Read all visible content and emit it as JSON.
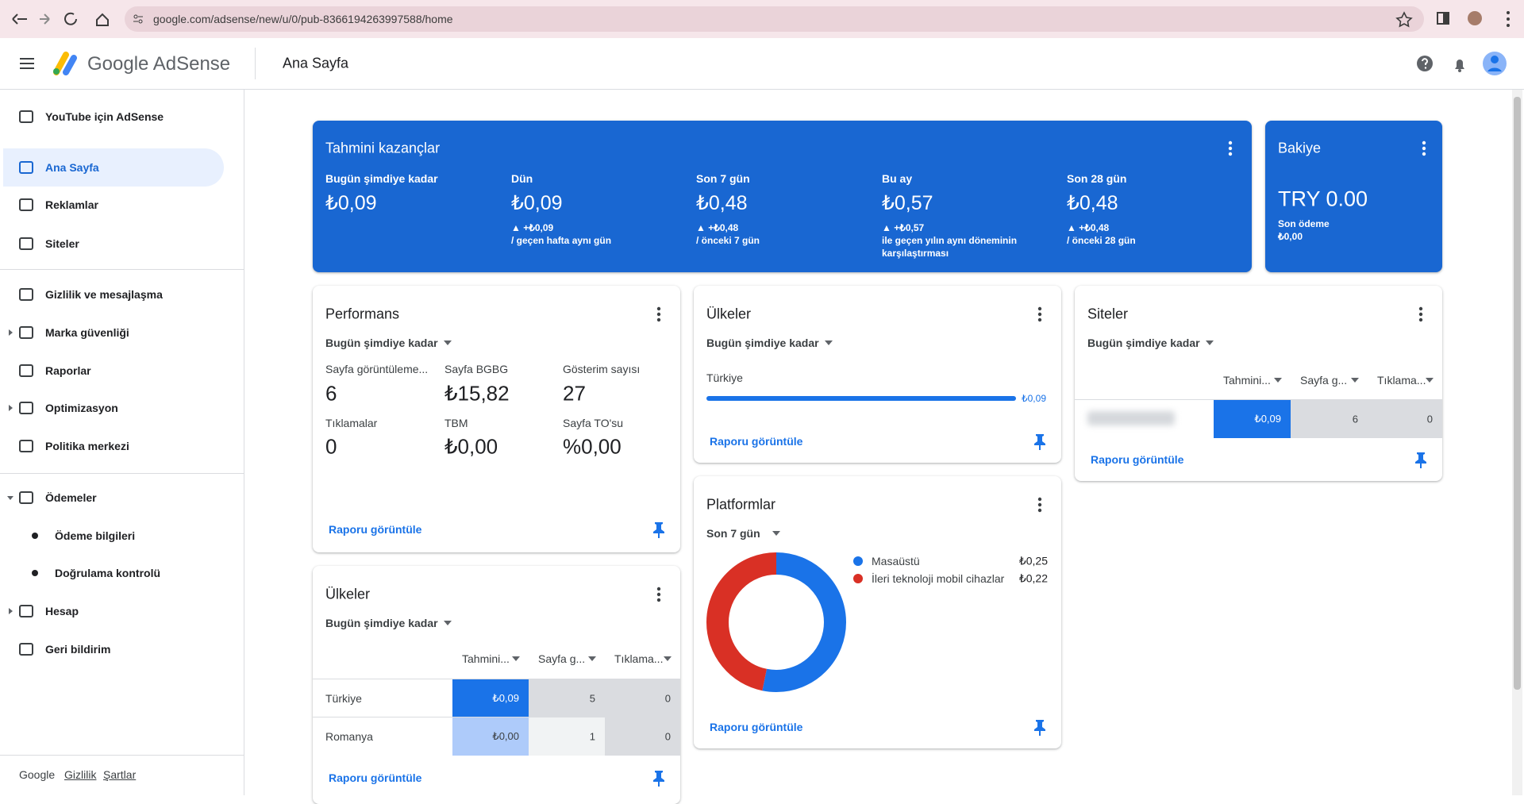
{
  "browser": {
    "url": "google.com/adsense/new/u/0/pub-8366194263997588/home"
  },
  "header": {
    "product": "Google AdSense",
    "page_title": "Ana Sayfa"
  },
  "sidebar": {
    "items": [
      "YouTube için AdSense",
      "Ana Sayfa",
      "Reklamlar",
      "Siteler",
      "Gizlilik ve mesajlaşma",
      "Marka güvenliği",
      "Raporlar",
      "Optimizasyon",
      "Politika merkezi",
      "Ödemeler",
      "Ödeme bilgileri",
      "Doğrulama kontrolü",
      "Hesap",
      "Geri bildirim"
    ],
    "footer": [
      "Google",
      "Gizlilik",
      "Şartlar"
    ]
  },
  "earnings": {
    "title": "Tahmini kazançlar",
    "periods": [
      {
        "label": "Bugün şimdiye kadar",
        "value": "₺0,09"
      },
      {
        "label": "Dün",
        "value": "₺0,09",
        "change": "▲ +₺0,09",
        "compare": "/ geçen hafta aynı gün"
      },
      {
        "label": "Son 7 gün",
        "value": "₺0,48",
        "change": "▲ +₺0,48",
        "compare": "/ önceki 7 gün"
      },
      {
        "label": "Bu ay",
        "value": "₺0,57",
        "change": "▲ +₺0,57",
        "compare": "ile geçen yılın aynı döneminin karşılaştırması"
      },
      {
        "label": "Son 28 gün",
        "value": "₺0,48",
        "change": "▲ +₺0,48",
        "compare": "/ önceki 28 gün"
      }
    ]
  },
  "balance": {
    "title": "Bakiye",
    "amount": "TRY 0.00",
    "last_payment_label": "Son ödeme",
    "last_payment": "₺0,00"
  },
  "performance": {
    "title": "Performans",
    "period": "Bugün şimdiye kadar",
    "metrics": [
      {
        "label": "Sayfa görüntüleme...",
        "value": "6"
      },
      {
        "label": "Sayfa BGBG",
        "value": "₺15,82"
      },
      {
        "label": "Gösterim sayısı",
        "value": "27"
      },
      {
        "label": "Tıklamalar",
        "value": "0"
      },
      {
        "label": "TBM",
        "value": "₺0,00"
      },
      {
        "label": "Sayfa TO'su",
        "value": "%0,00"
      }
    ],
    "link": "Raporu görüntüle"
  },
  "countries_summary": {
    "title": "Ülkeler",
    "period": "Bugün şimdiye kadar",
    "rows": [
      {
        "name": "Türkiye",
        "value": "₺0,09"
      }
    ],
    "link": "Raporu görüntüle"
  },
  "platforms": {
    "title": "Platformlar",
    "period": "Son 7 gün",
    "series": [
      {
        "name": "Masaüstü",
        "value": 0.25,
        "label": "₺0,25",
        "color": "#1a73e8"
      },
      {
        "name": "İleri teknoloji mobil cihazlar",
        "value": 0.22,
        "label": "₺0,22",
        "color": "#d93025"
      }
    ],
    "link": "Raporu görüntüle"
  },
  "sites": {
    "title": "Siteler",
    "period": "Bugün şimdiye kadar",
    "columns": [
      "Tahmini...",
      "Sayfa g...",
      "Tıklama..."
    ],
    "rows": [
      [
        "₺0,09",
        "6",
        "0"
      ]
    ],
    "link": "Raporu görüntüle"
  },
  "countries": {
    "title": "Ülkeler",
    "period": "Bugün şimdiye kadar",
    "columns": [
      "Tahmini...",
      "Sayfa g...",
      "Tıklama..."
    ],
    "rows": [
      [
        "Türkiye",
        "₺0,09",
        "5",
        "0"
      ],
      [
        "Romanya",
        "₺0,00",
        "1",
        "0"
      ]
    ],
    "link": "Raporu görüntüle"
  }
}
